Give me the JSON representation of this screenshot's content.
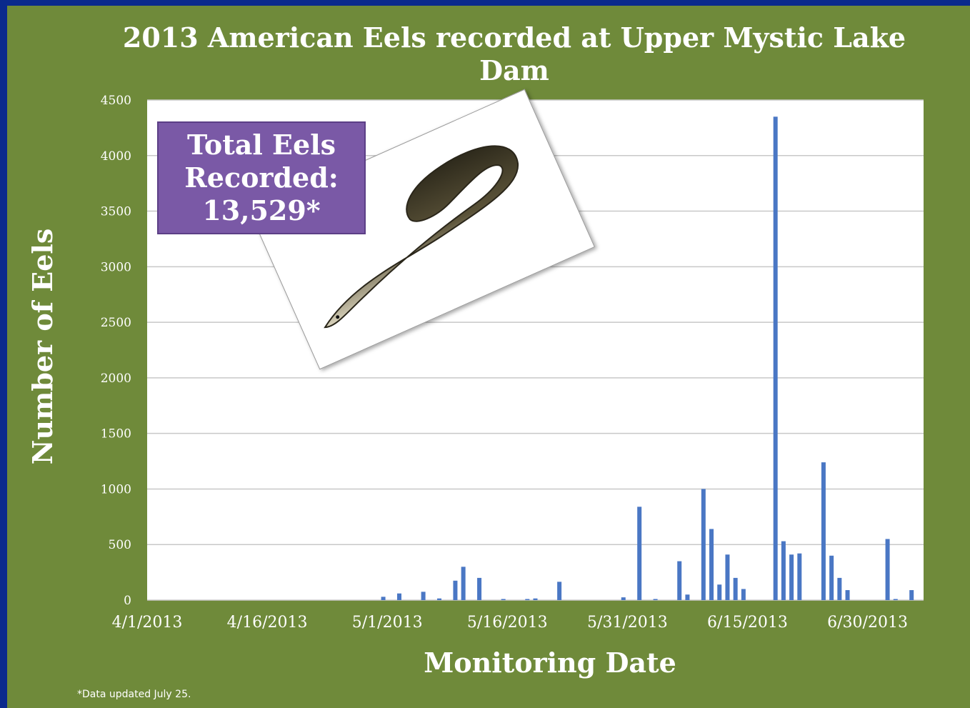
{
  "footnote": "*Data updated July 25.",
  "callout": {
    "line1": "Total Eels",
    "line2": "Recorded:",
    "line3": "13,529*"
  },
  "colors": {
    "background": "#6f8a3a",
    "frame": "#0a2a8c",
    "bar": "#4a77c4",
    "callout": "#7a59a6",
    "grid": "#c8c8c8"
  },
  "photo": {
    "icon": "american-eel-photo"
  },
  "chart_data": {
    "type": "bar",
    "title": "2013 American Eels recorded at Upper Mystic Lake Dam",
    "xlabel": "Monitoring Date",
    "ylabel": "Number of Eels",
    "ylim": [
      0,
      4500
    ],
    "yticks": [
      0,
      500,
      1000,
      1500,
      2000,
      2500,
      3000,
      3500,
      4000,
      4500
    ],
    "xlim": [
      "4/1/2013",
      "7/7/2013"
    ],
    "xtick_labels": [
      "4/1/2013",
      "4/16/2013",
      "5/1/2013",
      "5/16/2013",
      "5/31/2013",
      "6/15/2013",
      "6/30/2013"
    ],
    "grid": true,
    "series": [
      {
        "x": [
          "4/30/2013",
          "5/2/2013",
          "5/5/2013",
          "5/7/2013",
          "5/9/2013",
          "5/10/2013",
          "5/12/2013",
          "5/15/2013",
          "5/18/2013",
          "5/19/2013",
          "5/22/2013",
          "5/30/2013",
          "6/1/2013",
          "6/3/2013",
          "6/6/2013",
          "6/7/2013",
          "6/9/2013",
          "6/10/2013",
          "6/11/2013",
          "6/12/2013",
          "6/13/2013",
          "6/14/2013",
          "6/18/2013",
          "6/19/2013",
          "6/20/2013",
          "6/21/2013",
          "6/24/2013",
          "6/25/2013",
          "6/26/2013",
          "6/27/2013",
          "7/2/2013",
          "7/3/2013",
          "7/5/2013"
        ],
        "values": [
          30,
          60,
          75,
          15,
          175,
          300,
          200,
          10,
          10,
          15,
          165,
          25,
          840,
          10,
          350,
          50,
          1000,
          640,
          140,
          410,
          200,
          100,
          4350,
          530,
          410,
          420,
          1240,
          400,
          200,
          90,
          550,
          10,
          90
        ]
      }
    ]
  }
}
